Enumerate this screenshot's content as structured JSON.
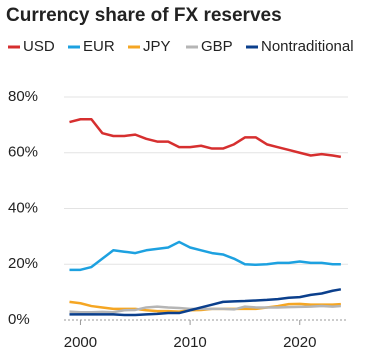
{
  "chart_data": {
    "type": "line",
    "title": "Currency share of FX reserves",
    "x": [
      1999,
      2000,
      2001,
      2002,
      2003,
      2004,
      2005,
      2006,
      2007,
      2008,
      2009,
      2010,
      2011,
      2012,
      2013,
      2014,
      2015,
      2016,
      2017,
      2018,
      2019,
      2020,
      2021,
      2022,
      2023,
      2023.75
    ],
    "series": [
      {
        "name": "USD",
        "color": "#d62f2f",
        "values": [
          71,
          72,
          72,
          67,
          66,
          66,
          66.5,
          65,
          64,
          64,
          62,
          62,
          62.5,
          61.5,
          61.5,
          63,
          65.5,
          65.5,
          63,
          62,
          61,
          60,
          59,
          59.5,
          59,
          58.5
        ]
      },
      {
        "name": "EUR",
        "color": "#1da1e0",
        "values": [
          18,
          18,
          19,
          22,
          25,
          24.5,
          24,
          25,
          25.5,
          26,
          28,
          26,
          25,
          24,
          23.5,
          22,
          20,
          19.8,
          20,
          20.5,
          20.5,
          21,
          20.5,
          20.5,
          20,
          20
        ]
      },
      {
        "name": "JPY",
        "color": "#f5a623",
        "values": [
          6.5,
          6,
          5,
          4.5,
          4,
          4,
          4,
          3.5,
          3.2,
          3.2,
          3,
          3.5,
          3.6,
          4,
          4,
          4,
          4,
          4,
          4.5,
          5,
          5.7,
          5.8,
          5.5,
          5.5,
          5.5,
          5.7
        ]
      },
      {
        "name": "GBP",
        "color": "#b5b5b5",
        "values": [
          3,
          2.8,
          2.8,
          2.9,
          2.8,
          3.5,
          3.6,
          4.5,
          4.8,
          4.5,
          4.3,
          4,
          4,
          4,
          4,
          3.8,
          4.8,
          4.5,
          4.5,
          4.5,
          4.6,
          4.7,
          4.8,
          5,
          4.8,
          5
        ]
      },
      {
        "name": "Nontraditional",
        "color": "#0b3f8c",
        "values": [
          2,
          2,
          2,
          2,
          2,
          1.8,
          1.8,
          2,
          2.2,
          2.5,
          2.5,
          3.5,
          4.5,
          5.5,
          6.5,
          6.7,
          6.8,
          7,
          7.2,
          7.5,
          8,
          8.2,
          9,
          9.5,
          10.5,
          11
        ]
      }
    ],
    "xlim": [
      1998.5,
      2024.4
    ],
    "xticks": [
      2000,
      2010,
      2020
    ],
    "ylim": [
      0,
      82.5
    ],
    "yticks": [
      {
        "value": 0,
        "label": "0%"
      },
      {
        "value": 20,
        "label": "20%"
      },
      {
        "value": 40,
        "label": "40%"
      },
      {
        "value": 60,
        "label": "60%"
      },
      {
        "value": 80,
        "label": "80%"
      }
    ],
    "grid": true
  }
}
